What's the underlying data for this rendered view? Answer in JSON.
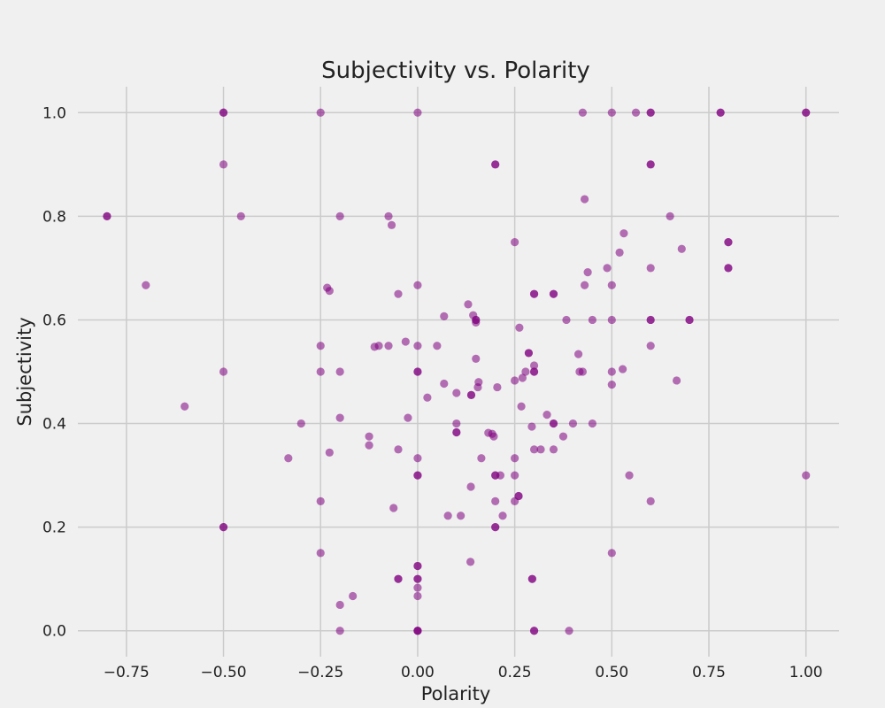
{
  "chart_data": {
    "type": "scatter",
    "title": "Subjectivity vs. Polarity",
    "xlabel": "Polarity",
    "ylabel": "Subjectivity",
    "xlim": [
      -0.875,
      1.085
    ],
    "ylim": [
      -0.05,
      1.05
    ],
    "xticks": [
      -0.75,
      -0.5,
      -0.25,
      0.0,
      0.25,
      0.5,
      0.75,
      1.0
    ],
    "xtick_labels": [
      "−0.75",
      "−0.50",
      "−0.25",
      "0.00",
      "0.25",
      "0.50",
      "0.75",
      "1.00"
    ],
    "yticks": [
      0.0,
      0.2,
      0.4,
      0.6,
      0.8,
      1.0
    ],
    "ytick_labels": [
      "0.0",
      "0.2",
      "0.4",
      "0.6",
      "0.8",
      "1.0"
    ],
    "grid": true,
    "marker_color": "#800080",
    "marker_alpha": 0.55,
    "background": "#f0f0f0",
    "gridline_color": "#cbcbcb",
    "points": [
      [
        -0.8,
        0.8
      ],
      [
        -0.8,
        0.8
      ],
      [
        -0.7,
        0.667
      ],
      [
        -0.6,
        0.433
      ],
      [
        -0.5,
        1.0
      ],
      [
        -0.5,
        1.0
      ],
      [
        -0.5,
        0.9
      ],
      [
        -0.5,
        0.5
      ],
      [
        -0.5,
        0.2
      ],
      [
        -0.5,
        0.2
      ],
      [
        -0.455,
        0.8
      ],
      [
        -0.333,
        0.333
      ],
      [
        -0.3,
        0.4
      ],
      [
        -0.25,
        1.0
      ],
      [
        -0.25,
        0.55
      ],
      [
        -0.25,
        0.5
      ],
      [
        -0.25,
        0.25
      ],
      [
        -0.25,
        0.15
      ],
      [
        -0.233,
        0.662
      ],
      [
        -0.227,
        0.656
      ],
      [
        -0.227,
        0.344
      ],
      [
        -0.2,
        0.8
      ],
      [
        -0.2,
        0.5
      ],
      [
        -0.2,
        0.411
      ],
      [
        -0.2,
        0.05
      ],
      [
        -0.2,
        0.0
      ],
      [
        -0.167,
        0.067
      ],
      [
        -0.125,
        0.375
      ],
      [
        -0.125,
        0.358
      ],
      [
        -0.111,
        0.548
      ],
      [
        -0.1,
        0.55
      ],
      [
        -0.075,
        0.8
      ],
      [
        -0.075,
        0.55
      ],
      [
        -0.067,
        0.783
      ],
      [
        -0.062,
        0.237
      ],
      [
        -0.05,
        0.65
      ],
      [
        -0.05,
        0.35
      ],
      [
        -0.05,
        0.1
      ],
      [
        -0.05,
        0.1
      ],
      [
        -0.031,
        0.558
      ],
      [
        -0.025,
        0.411
      ],
      [
        0.0,
        1.0
      ],
      [
        0.0,
        0.667
      ],
      [
        0.0,
        0.55
      ],
      [
        0.0,
        0.5
      ],
      [
        0.0,
        0.5
      ],
      [
        0.0,
        0.333
      ],
      [
        0.0,
        0.3
      ],
      [
        0.0,
        0.3
      ],
      [
        0.0,
        0.125
      ],
      [
        0.0,
        0.125
      ],
      [
        0.0,
        0.1
      ],
      [
        0.0,
        0.1
      ],
      [
        0.0,
        0.083
      ],
      [
        0.0,
        0.067
      ],
      [
        0.0,
        0.0
      ],
      [
        0.0,
        0.0
      ],
      [
        0.0,
        0.0
      ],
      [
        0.025,
        0.45
      ],
      [
        0.05,
        0.55
      ],
      [
        0.068,
        0.607
      ],
      [
        0.068,
        0.477
      ],
      [
        0.078,
        0.222
      ],
      [
        0.1,
        0.4
      ],
      [
        0.1,
        0.459
      ],
      [
        0.1,
        0.383
      ],
      [
        0.1,
        0.383
      ],
      [
        0.111,
        0.222
      ],
      [
        0.13,
        0.63
      ],
      [
        0.136,
        0.133
      ],
      [
        0.137,
        0.278
      ],
      [
        0.138,
        0.455
      ],
      [
        0.138,
        0.455
      ],
      [
        0.143,
        0.609
      ],
      [
        0.15,
        0.6
      ],
      [
        0.15,
        0.595
      ],
      [
        0.15,
        0.6
      ],
      [
        0.15,
        0.525
      ],
      [
        0.155,
        0.47
      ],
      [
        0.157,
        0.48
      ],
      [
        0.164,
        0.333
      ],
      [
        0.182,
        0.382
      ],
      [
        0.192,
        0.38
      ],
      [
        0.196,
        0.375
      ],
      [
        0.2,
        0.9
      ],
      [
        0.2,
        0.9
      ],
      [
        0.2,
        0.3
      ],
      [
        0.2,
        0.3
      ],
      [
        0.2,
        0.25
      ],
      [
        0.2,
        0.2
      ],
      [
        0.2,
        0.2
      ],
      [
        0.205,
        0.47
      ],
      [
        0.213,
        0.3
      ],
      [
        0.219,
        0.222
      ],
      [
        0.25,
        0.75
      ],
      [
        0.25,
        0.483
      ],
      [
        0.25,
        0.333
      ],
      [
        0.25,
        0.3
      ],
      [
        0.25,
        0.25
      ],
      [
        0.26,
        0.26
      ],
      [
        0.26,
        0.26
      ],
      [
        0.262,
        0.585
      ],
      [
        0.267,
        0.433
      ],
      [
        0.27,
        0.488
      ],
      [
        0.278,
        0.5
      ],
      [
        0.286,
        0.536
      ],
      [
        0.286,
        0.536
      ],
      [
        0.294,
        0.394
      ],
      [
        0.295,
        0.1
      ],
      [
        0.295,
        0.1
      ],
      [
        0.3,
        0.65
      ],
      [
        0.3,
        0.65
      ],
      [
        0.3,
        0.512
      ],
      [
        0.3,
        0.5
      ],
      [
        0.3,
        0.5
      ],
      [
        0.3,
        0.35
      ],
      [
        0.3,
        0.0
      ],
      [
        0.3,
        0.0
      ],
      [
        0.317,
        0.35
      ],
      [
        0.333,
        0.417
      ],
      [
        0.35,
        0.65
      ],
      [
        0.35,
        0.65
      ],
      [
        0.35,
        0.4
      ],
      [
        0.35,
        0.4
      ],
      [
        0.35,
        0.35
      ],
      [
        0.375,
        0.375
      ],
      [
        0.383,
        0.6
      ],
      [
        0.39,
        0.0
      ],
      [
        0.4,
        0.4
      ],
      [
        0.414,
        0.534
      ],
      [
        0.417,
        0.5
      ],
      [
        0.425,
        1.0
      ],
      [
        0.425,
        0.5
      ],
      [
        0.43,
        0.833
      ],
      [
        0.43,
        0.667
      ],
      [
        0.438,
        0.692
      ],
      [
        0.45,
        0.6
      ],
      [
        0.45,
        0.4
      ],
      [
        0.488,
        0.7
      ],
      [
        0.5,
        1.0
      ],
      [
        0.5,
        0.667
      ],
      [
        0.5,
        0.6
      ],
      [
        0.5,
        0.5
      ],
      [
        0.5,
        0.475
      ],
      [
        0.5,
        0.15
      ],
      [
        0.52,
        0.73
      ],
      [
        0.528,
        0.505
      ],
      [
        0.531,
        0.767
      ],
      [
        0.545,
        0.3
      ],
      [
        0.562,
        1.0
      ],
      [
        0.6,
        1.0
      ],
      [
        0.6,
        1.0
      ],
      [
        0.6,
        0.9
      ],
      [
        0.6,
        0.9
      ],
      [
        0.6,
        0.7
      ],
      [
        0.6,
        0.6
      ],
      [
        0.6,
        0.6
      ],
      [
        0.6,
        0.55
      ],
      [
        0.6,
        0.25
      ],
      [
        0.65,
        0.8
      ],
      [
        0.667,
        0.483
      ],
      [
        0.68,
        0.737
      ],
      [
        0.7,
        0.6
      ],
      [
        0.7,
        0.6
      ],
      [
        0.78,
        1.0
      ],
      [
        0.78,
        1.0
      ],
      [
        0.8,
        0.75
      ],
      [
        0.8,
        0.75
      ],
      [
        0.8,
        0.7
      ],
      [
        0.8,
        0.7
      ],
      [
        1.0,
        1.0
      ],
      [
        1.0,
        1.0
      ],
      [
        1.0,
        0.3
      ]
    ]
  }
}
